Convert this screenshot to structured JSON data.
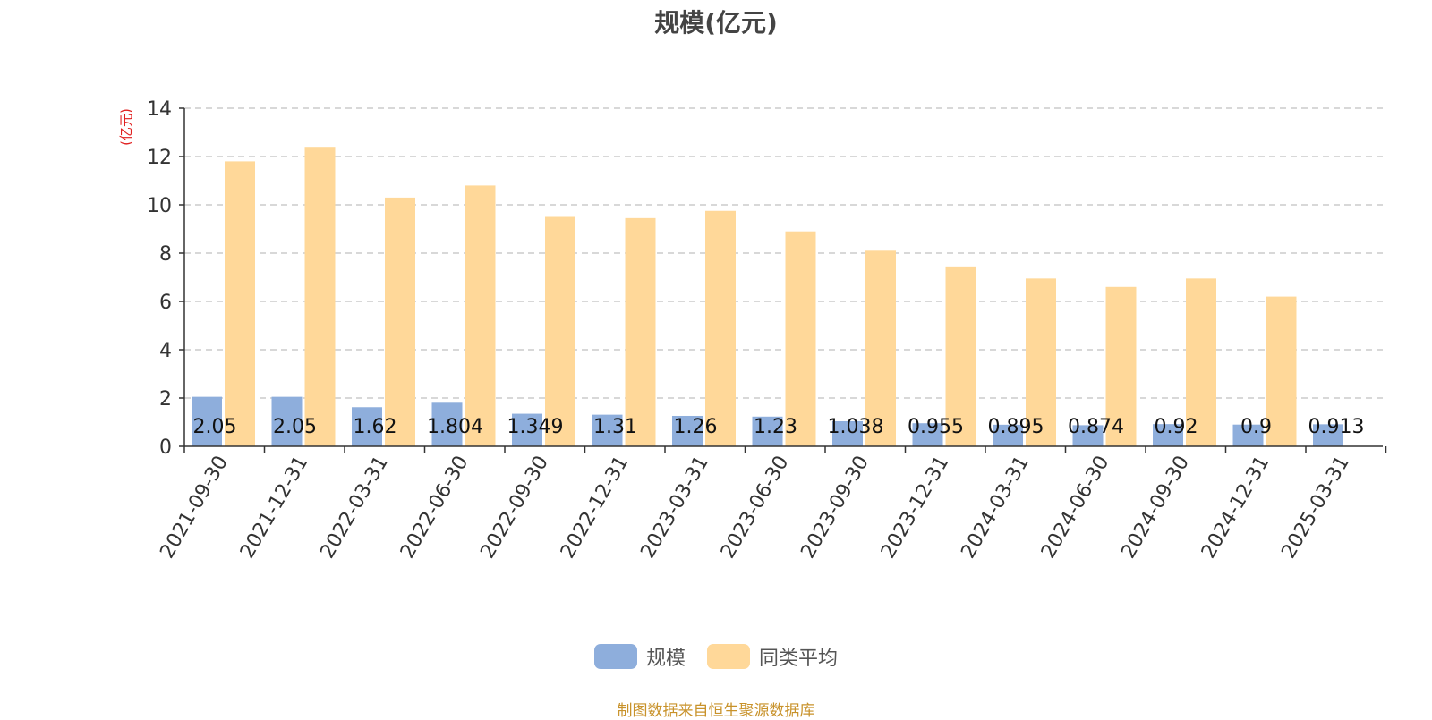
{
  "chart_data": {
    "type": "bar",
    "title": "规模(亿元)",
    "ylabel": "(亿元)",
    "xlabel": "",
    "ylim": [
      0,
      14
    ],
    "yticks": [
      "0",
      "2",
      "4",
      "6",
      "8",
      "10",
      "12",
      "14"
    ],
    "grid": true,
    "legend_position": "bottom",
    "categories": [
      "2021-09-30",
      "2021-12-31",
      "2022-03-31",
      "2022-06-30",
      "2022-09-30",
      "2022-12-31",
      "2023-03-31",
      "2023-06-30",
      "2023-09-30",
      "2023-12-31",
      "2024-03-31",
      "2024-06-30",
      "2024-09-30",
      "2024-12-31",
      "2025-03-31"
    ],
    "series": [
      {
        "name": "规模",
        "color": "#8eaedc",
        "values": [
          2.05,
          2.05,
          1.62,
          1.804,
          1.349,
          1.31,
          1.26,
          1.23,
          1.038,
          0.955,
          0.895,
          0.874,
          0.92,
          0.9,
          0.913
        ],
        "labels": [
          "2.05",
          "2.05",
          "1.62",
          "1.804",
          "1.349",
          "1.31",
          "1.26",
          "1.23",
          "1.038",
          "0.955",
          "0.895",
          "0.874",
          "0.92",
          "0.9",
          "0.913"
        ]
      },
      {
        "name": "同类平均",
        "color": "#ffd899",
        "values": [
          11.8,
          12.4,
          10.3,
          10.8,
          9.5,
          9.45,
          9.75,
          8.9,
          8.1,
          7.45,
          6.95,
          6.6,
          6.95,
          6.2,
          null
        ]
      }
    ]
  },
  "legend": {
    "items": [
      {
        "label": "规模",
        "color": "#8eaedc"
      },
      {
        "label": "同类平均",
        "color": "#ffd899"
      }
    ]
  },
  "source_note": "制图数据来自恒生聚源数据库"
}
